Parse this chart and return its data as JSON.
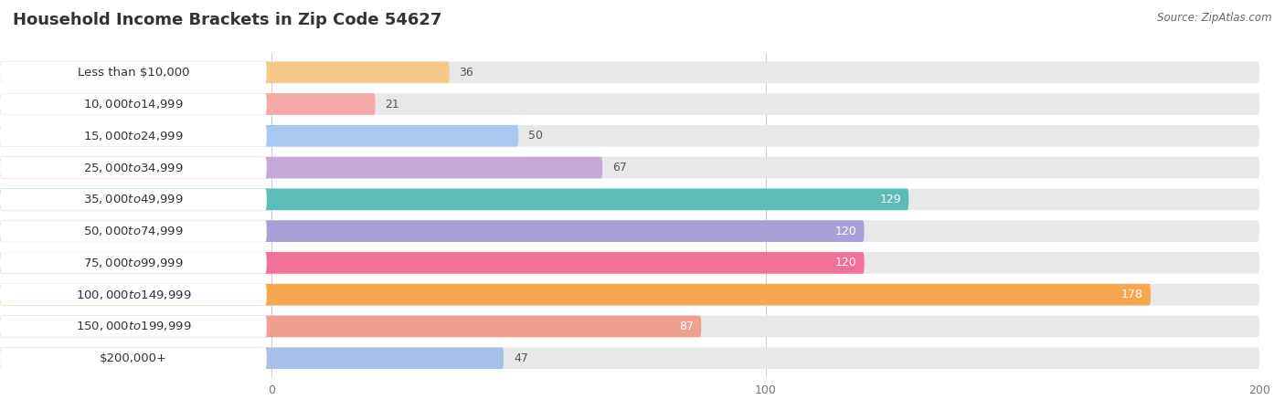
{
  "title": "Household Income Brackets in Zip Code 54627",
  "source": "Source: ZipAtlas.com",
  "categories": [
    "Less than $10,000",
    "$10,000 to $14,999",
    "$15,000 to $24,999",
    "$25,000 to $34,999",
    "$35,000 to $49,999",
    "$50,000 to $74,999",
    "$75,000 to $99,999",
    "$100,000 to $149,999",
    "$150,000 to $199,999",
    "$200,000+"
  ],
  "values": [
    36,
    21,
    50,
    67,
    129,
    120,
    120,
    178,
    87,
    47
  ],
  "bar_colors": [
    "#F5C98A",
    "#F4A8A8",
    "#A8C8F0",
    "#C8A8D8",
    "#5BBCB8",
    "#A8A0D8",
    "#F07098",
    "#F5A850",
    "#F0A090",
    "#A8C0E8"
  ],
  "data_max": 200,
  "xticks": [
    0,
    100,
    200
  ],
  "background_color": "#ffffff",
  "row_bg_color": "#e8e8e8",
  "label_bg_color": "#f0f0f0",
  "title_fontsize": 13,
  "label_fontsize": 9.5,
  "value_fontsize": 9
}
